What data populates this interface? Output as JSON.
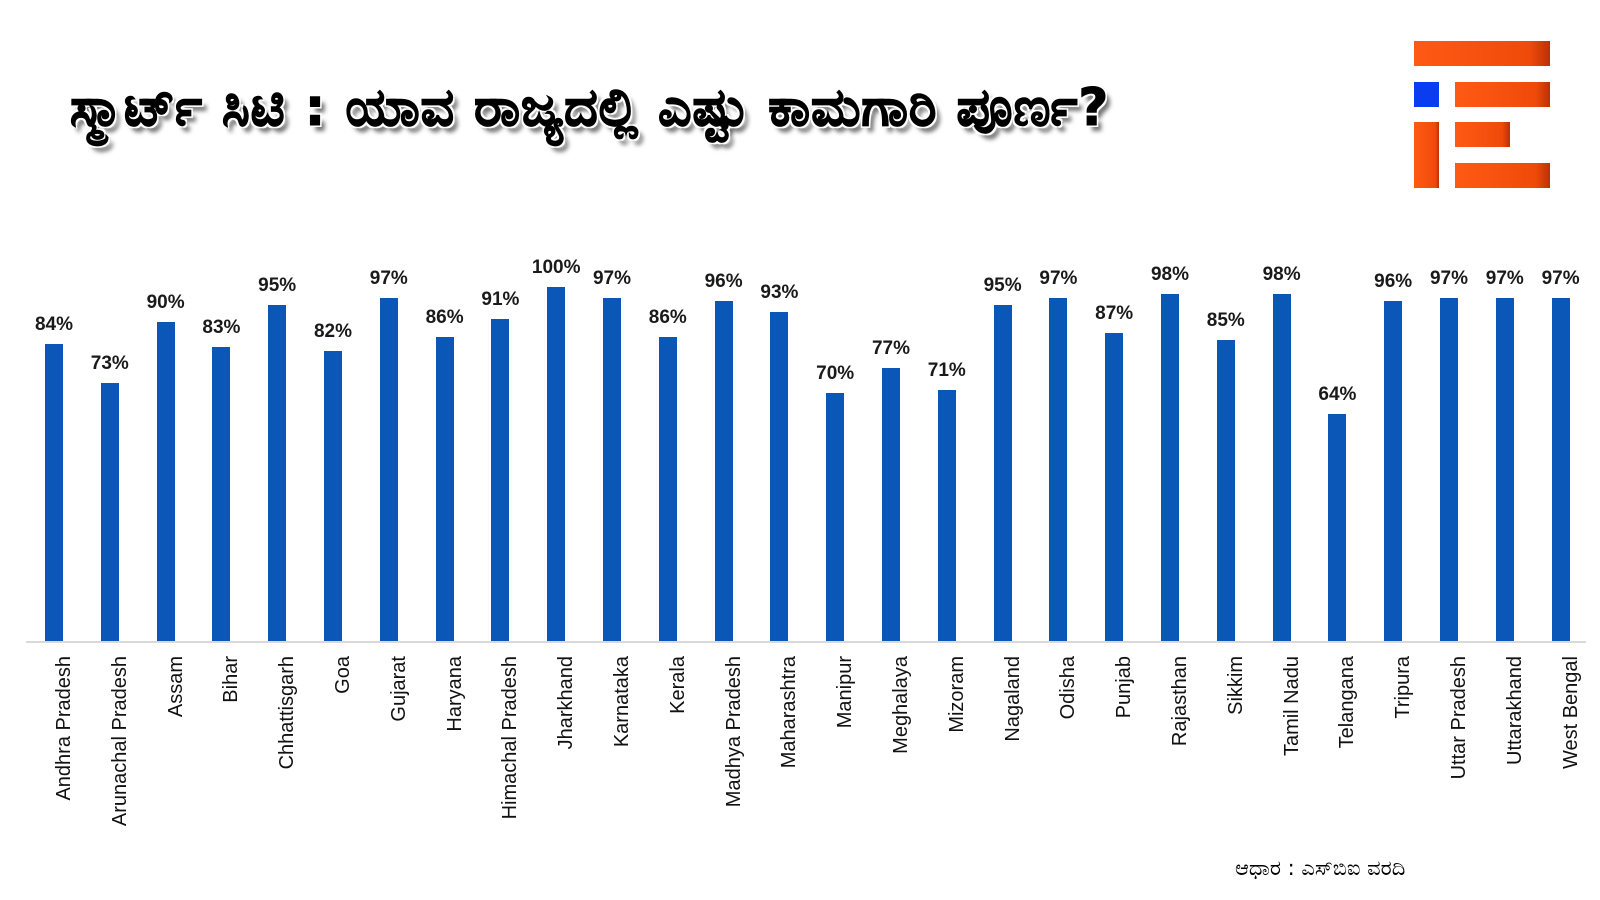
{
  "title": "ಸ್ಮಾರ್ಟ್ ಸಿಟಿ : ಯಾವ ರಾಜ್ಯದಲ್ಲಿ ಎಷ್ಟು ಕಾಮಗಾರಿ ಪೂರ್ಣ?",
  "source": "ಆಧಾರ : ಎಸ್‌ಬಿಐ ವರದಿ",
  "logo": {
    "name": "ie-logo",
    "colors": {
      "orange": "#ff5a14",
      "blue": "#0a3cf0"
    }
  },
  "colors": {
    "bar": "#0b57b8",
    "axis": "#d9d9d9"
  },
  "chart_data": {
    "type": "bar",
    "title": "ಸ್ಮಾರ್ಟ್ ಸಿಟಿ : ಯಾವ ರಾಜ್ಯದಲ್ಲಿ ಎಷ್ಟು ಕಾಮಗಾರಿ ಪೂರ್ಣ?",
    "xlabel": "",
    "ylabel": "",
    "ylim": [
      0,
      100
    ],
    "grid": false,
    "legend": "none",
    "categories": [
      "Andhra Pradesh",
      "Arunachal Pradesh",
      "Assam",
      "Bihar",
      "Chhattisgarh",
      "Goa",
      "Gujarat",
      "Haryana",
      "Himachal Pradesh",
      "Jharkhand",
      "Karnataka",
      "Kerala",
      "Madhya Pradesh",
      "Maharashtra",
      "Manipur",
      "Meghalaya",
      "Mizoram",
      "Nagaland",
      "Odisha",
      "Punjab",
      "Rajasthan",
      "Sikkim",
      "Tamil Nadu",
      "Telangana",
      "Tripura",
      "Uttar Pradesh",
      "Uttarakhand",
      "West Bengal"
    ],
    "values": [
      84,
      73,
      90,
      83,
      95,
      82,
      97,
      86,
      91,
      100,
      97,
      86,
      96,
      93,
      70,
      77,
      71,
      95,
      97,
      87,
      98,
      85,
      98,
      64,
      96,
      97,
      97,
      97
    ],
    "labels": [
      "84%",
      "73%",
      "90%",
      "83%",
      "95%",
      "82%",
      "97%",
      "86%",
      "91%",
      "100%",
      "97%",
      "86%",
      "96%",
      "93%",
      "70%",
      "77%",
      "71%",
      "95%",
      "97%",
      "87%",
      "98%",
      "85%",
      "98%",
      "64%",
      "96%",
      "97%",
      "97%",
      "97%"
    ],
    "annotation": "ಆಧಾರ : ಎಸ್‌ಬಿಐ ವರದಿ"
  }
}
